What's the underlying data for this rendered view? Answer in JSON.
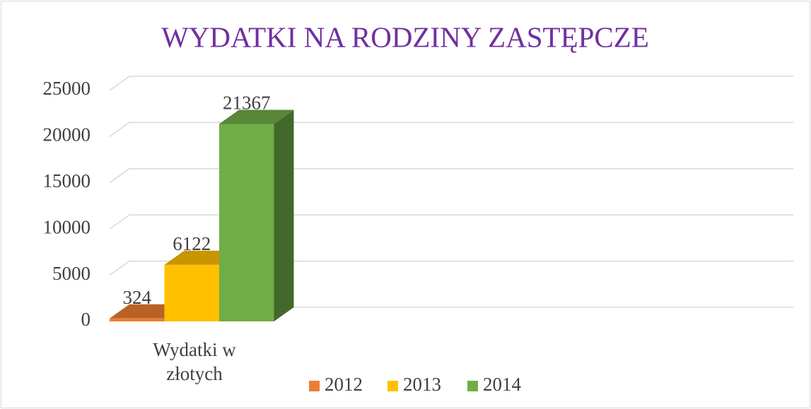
{
  "chart_data": {
    "type": "bar3d",
    "title": "WYDATKI NA RODZINY ZASTĘPCZE",
    "categories": [
      "Wydatki w złotych"
    ],
    "series": [
      {
        "name": "2012",
        "color": "#ed7d31",
        "values": [
          324
        ]
      },
      {
        "name": "2013",
        "color": "#ffc000",
        "values": [
          6122
        ]
      },
      {
        "name": "2014",
        "color": "#70ad47",
        "values": [
          21367
        ]
      }
    ],
    "ylim": [
      0,
      25000
    ],
    "yticks": [
      0,
      5000,
      10000,
      15000,
      20000,
      25000
    ],
    "grid": true,
    "legend": "bottom"
  }
}
